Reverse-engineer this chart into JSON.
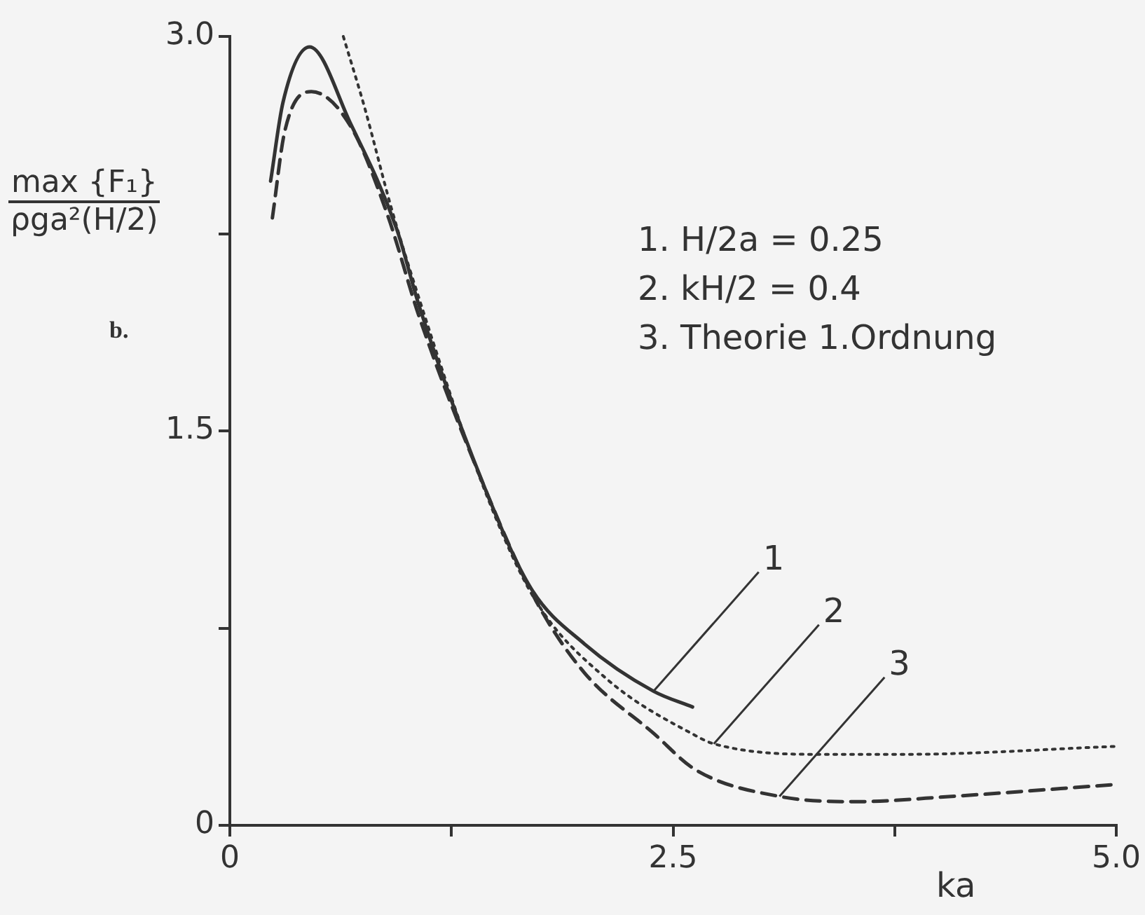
{
  "chart_data": {
    "type": "line",
    "xlabel": "ka",
    "ylabel": "max {F₁}\nρga²(H/2)",
    "xlim": [
      0,
      5
    ],
    "xticks": [
      0,
      {
        "value": 1.25,
        "label": null
      },
      2.5,
      {
        "value": 3.75,
        "label": null
      },
      {
        "value": 5,
        "label": "5.0"
      }
    ],
    "ylim": [
      0,
      3
    ],
    "yticks": [
      0,
      {
        "value": 0.75,
        "label": null
      },
      1.5,
      {
        "value": 2.25,
        "label": null
      },
      {
        "value": 3,
        "label": "3.0"
      }
    ],
    "grid": false,
    "legend": false,
    "marker": "none",
    "series": [
      {
        "color": "#333333",
        "line_style": "solid",
        "x": [
          0.23,
          0.3,
          0.45,
          0.68,
          0.94,
          1.07,
          1.44,
          1.7,
          2.0,
          2.39,
          2.61
        ],
        "values": [
          2.45,
          2.75,
          2.96,
          2.67,
          2.27,
          1.97,
          1.28,
          0.9,
          0.69,
          0.51,
          0.45
        ]
      },
      {
        "color": "#333333",
        "line_style": "dotted",
        "x": [
          0.64,
          0.76,
          0.91,
          1.05,
          1.44,
          1.72,
          2.12,
          2.63,
          2.73,
          3.28,
          3.81,
          4.99
        ],
        "values": [
          3.0,
          2.73,
          2.35,
          2.04,
          1.27,
          0.86,
          0.56,
          0.34,
          0.31,
          0.27,
          0.27,
          0.3
        ]
      },
      {
        "color": "#333333",
        "line_style": "dashed",
        "x": [
          0.24,
          0.31,
          0.46,
          0.68,
          0.89,
          1.07,
          1.44,
          1.73,
          2.0,
          2.39,
          2.63,
          3.1,
          3.54,
          4.07,
          4.99
        ],
        "values": [
          2.31,
          2.64,
          2.79,
          2.66,
          2.32,
          1.93,
          1.28,
          0.85,
          0.58,
          0.35,
          0.21,
          0.11,
          0.09,
          0.11,
          0.155
        ]
      }
    ],
    "annotations": [
      "b.",
      "1. H/2a = 0.25",
      "2. kH/2 = 0.4",
      "3. Theorie 1.Ordnung",
      {
        "text": "1",
        "x": 2.39,
        "y": 0.51
      },
      {
        "text": "2",
        "x": 2.73,
        "y": 0.31
      },
      {
        "text": "3",
        "x": 3.1,
        "y": 0.11
      }
    ]
  }
}
